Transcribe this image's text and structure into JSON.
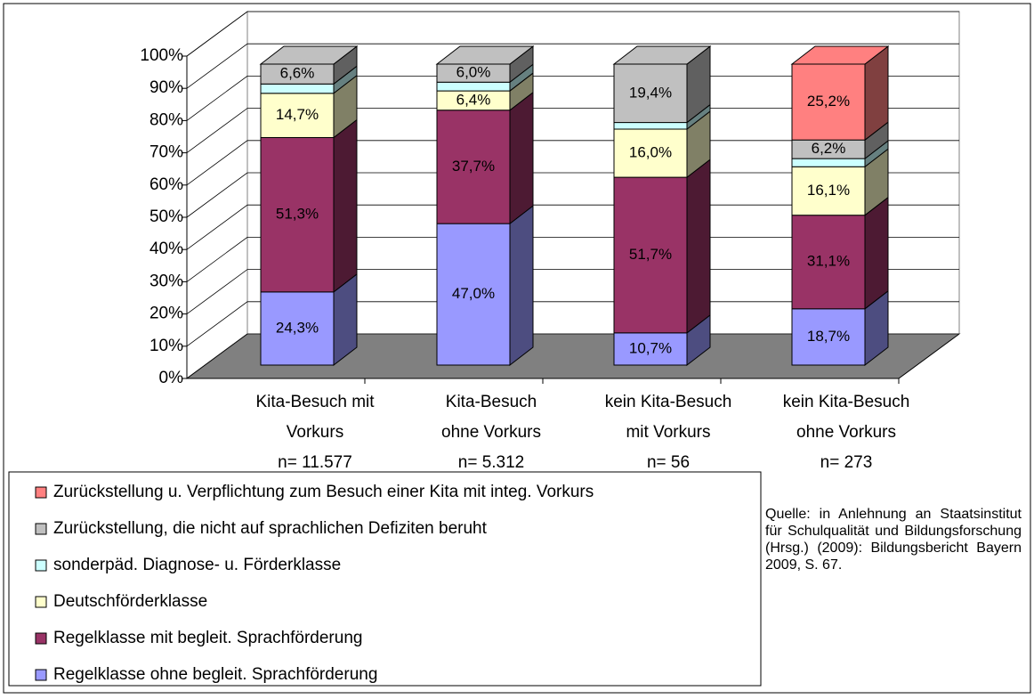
{
  "chart_data": {
    "type": "bar3d_stacked",
    "categories": [
      [
        "Kita-Besuch mit",
        "Vorkurs",
        "n= 11.577"
      ],
      [
        "Kita-Besuch",
        "ohne Vorkurs",
        "n= 5.312"
      ],
      [
        "kein Kita-Besuch",
        "mit Vorkurs",
        "n= 56"
      ],
      [
        "kein Kita-Besuch",
        "ohne Vorkurs",
        "n= 273"
      ]
    ],
    "series": [
      {
        "name": "Regelklasse ohne begleit. Sprachförderung",
        "color": "#9999ff",
        "side": "#4d4d80",
        "values": [
          24.3,
          47.0,
          10.7,
          18.7
        ],
        "value_labels": [
          "24,3%",
          "47,0%",
          "10,7%",
          "18,7%"
        ]
      },
      {
        "name": "Regelklasse mit begleit. Sprachförderung",
        "color": "#993366",
        "side": "#4d1a33",
        "values": [
          51.3,
          37.7,
          51.7,
          31.1
        ],
        "value_labels": [
          "51,3%",
          "37,7%",
          "51,7%",
          "31,1%"
        ]
      },
      {
        "name": "Deutschförderklasse",
        "color": "#ffffcc",
        "side": "#808066",
        "values": [
          14.7,
          6.4,
          16.0,
          16.1
        ],
        "value_labels": [
          "14,7%",
          "6,4%",
          "16,0%",
          "16,1%"
        ]
      },
      {
        "name": "sonderpäd. Diagnose- u. Förderklasse",
        "color": "#ccffff",
        "side": "#668080",
        "values": [
          3.1,
          2.9,
          2.2,
          2.7
        ]
      },
      {
        "name": "Zurückstellung, die nicht auf sprachlichen Defiziten beruht",
        "color": "#c0c0c0",
        "side": "#606060",
        "values": [
          6.6,
          6.0,
          19.4,
          6.2
        ],
        "value_labels": [
          "6,6%",
          "6,0%",
          "19,4%",
          "6,2%"
        ]
      },
      {
        "name": "Zurückstellung u. Verpflichtung zum Besuch einer Kita mit integ. Vorkurs",
        "color": "#ff8080",
        "side": "#804040",
        "values": [
          0,
          0,
          0,
          25.2
        ],
        "value_labels": [
          null,
          null,
          null,
          "25,2%"
        ]
      }
    ],
    "ylim": [
      0,
      100
    ],
    "yticks": [
      {
        "value": 0,
        "label": "0%"
      },
      {
        "value": 10,
        "label": "10%"
      },
      {
        "value": 20,
        "label": "20%"
      },
      {
        "value": 30,
        "label": "30%"
      },
      {
        "value": 40,
        "label": "40%"
      },
      {
        "value": 50,
        "label": "50%"
      },
      {
        "value": 60,
        "label": "60%"
      },
      {
        "value": 70,
        "label": "70%"
      },
      {
        "value": 80,
        "label": "80%"
      },
      {
        "value": 90,
        "label": "90%"
      },
      {
        "value": 100,
        "label": "100%"
      }
    ],
    "grid": true,
    "source": "Quelle: in Anlehnung an Staatsinstitut für Schulqualität und Bildungsforschung (Hrsg.) (2009): Bildungsbericht Bayern 2009, S. 67."
  }
}
